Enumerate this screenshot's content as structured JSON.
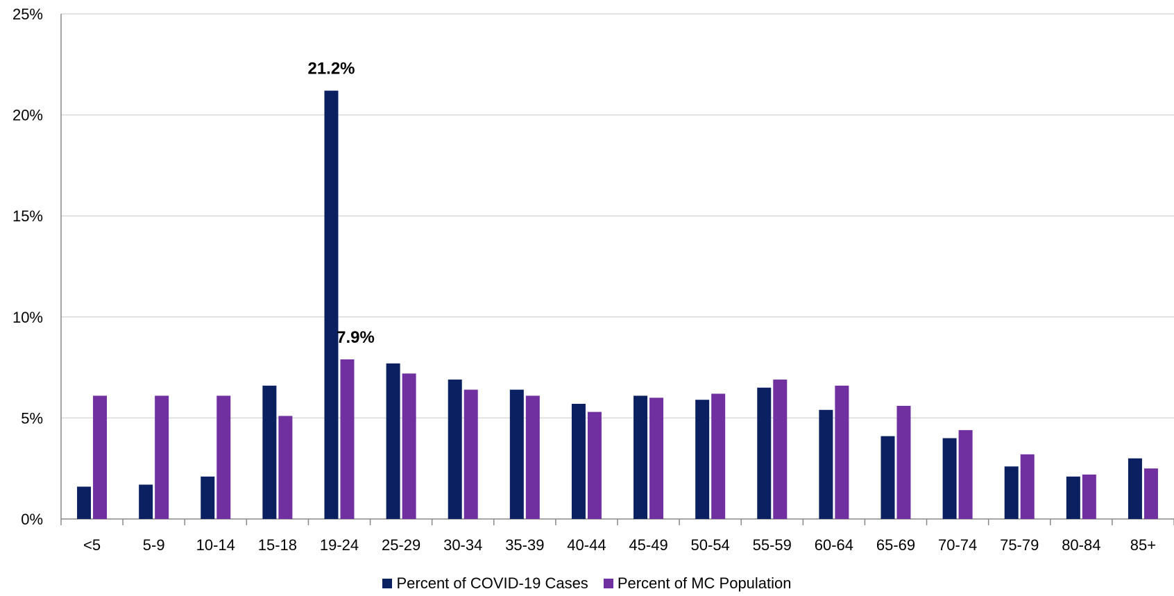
{
  "chart_data": {
    "type": "bar",
    "categories": [
      "<5",
      "5-9",
      "10-14",
      "15-18",
      "19-24",
      "25-29",
      "30-34",
      "35-39",
      "40-44",
      "45-49",
      "50-54",
      "55-59",
      "60-64",
      "65-69",
      "70-74",
      "75-79",
      "80-84",
      "85+"
    ],
    "series": [
      {
        "name": "Percent of COVID-19 Cases",
        "color": "#0b2060",
        "values": [
          1.6,
          1.7,
          2.1,
          6.6,
          21.2,
          7.7,
          6.9,
          6.4,
          5.7,
          6.1,
          5.9,
          6.5,
          5.4,
          4.1,
          4.0,
          2.6,
          2.1,
          3.0
        ]
      },
      {
        "name": "Percent of MC Population",
        "color": "#7030a0",
        "values": [
          6.1,
          6.1,
          6.1,
          5.1,
          7.9,
          7.2,
          6.4,
          6.1,
          5.3,
          6.0,
          6.2,
          6.9,
          6.6,
          5.6,
          4.4,
          3.2,
          2.2,
          2.5
        ]
      }
    ],
    "annotations": [
      {
        "series": 0,
        "category": "19-24",
        "text": "21.2%"
      },
      {
        "series": 1,
        "category": "19-24",
        "text": "7.9%"
      }
    ],
    "yticks": [
      "0%",
      "5%",
      "10%",
      "15%",
      "20%",
      "25%"
    ],
    "ylim": [
      0,
      25
    ],
    "grid": true,
    "legend_position": "bottom",
    "title": "",
    "xlabel": "",
    "ylabel": ""
  }
}
